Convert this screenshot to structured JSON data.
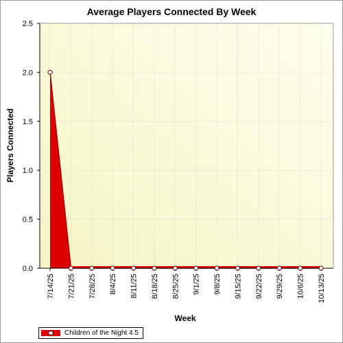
{
  "chart_data": {
    "type": "area",
    "title": "Average Players Connected By Week",
    "xlabel": "Week",
    "ylabel": "Players Connected",
    "categories": [
      "7/14/25",
      "7/21/25",
      "7/28/25",
      "8/4/25",
      "8/11/25",
      "8/18/25",
      "8/25/25",
      "9/1/25",
      "9/8/25",
      "9/15/25",
      "9/22/25",
      "9/29/25",
      "10/6/25",
      "10/13/25"
    ],
    "ylim": [
      0,
      2.5
    ],
    "yticks": [
      "0.0",
      "0.5",
      "1.0",
      "1.5",
      "2.0",
      "2.5"
    ],
    "grid": true,
    "legend_position": "bottom-left",
    "series": [
      {
        "name": "Children of the Night 4.5",
        "values": [
          2.0,
          0,
          0,
          0,
          0,
          0,
          0,
          0,
          0,
          0,
          0,
          0,
          0,
          0
        ],
        "color": "#dd0000"
      }
    ],
    "background_top": "#ffffee",
    "background_bottom": "#f4f4c4"
  }
}
